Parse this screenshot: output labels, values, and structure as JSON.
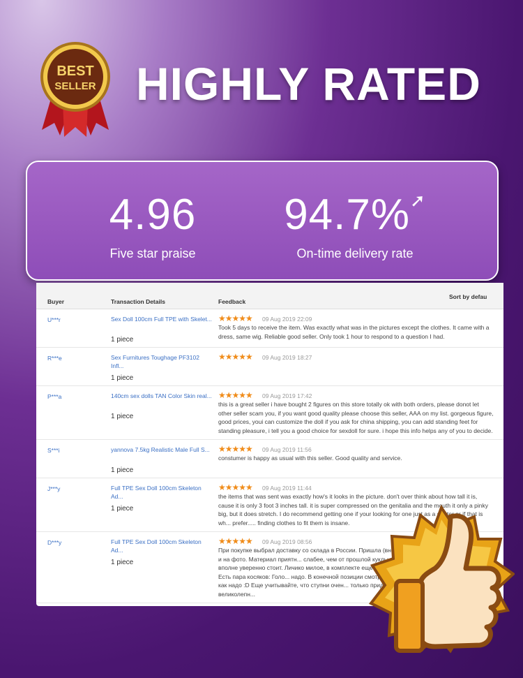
{
  "badge": {
    "line1": "BEST",
    "line2": "SELLER"
  },
  "headline": "HIGHLY RATED",
  "stats": [
    {
      "value": "4.96",
      "label": "Five star praise"
    },
    {
      "value": "94.7%",
      "label": "On-time delivery rate",
      "icon": "arrow-up-icon"
    }
  ],
  "table": {
    "headers": {
      "buyer": "Buyer",
      "transaction": "Transaction Details",
      "feedback": "Feedback",
      "sort": "Sort by defau"
    },
    "rows": [
      {
        "buyer": "U***r",
        "product": "Sex Doll 100cm Full TPE with Skelet...",
        "qty": "1 piece",
        "stars": "★★★★★",
        "date": "09 Aug 2019 22:09",
        "feedback": "Took 5 days to receive the item. Was exactly what was in the pictures except the clothes. It came with a dress, same wig. Reliable good seller. Only took 1 hour to respond to a question I had."
      },
      {
        "buyer": "R***e",
        "product": "Sex Furnitures Toughage PF3102 Infl...",
        "qty": "1 piece",
        "stars": "★★★★★",
        "date": "09 Aug 2019 18:27",
        "feedback": ""
      },
      {
        "buyer": "P***a",
        "product": "140cm sex dolls TAN Color Skin real...",
        "qty": "1 piece",
        "stars": "★★★★★",
        "date": "09 Aug 2019 17:42",
        "feedback": "this is a great seller i have bought 2 figures on this store totally ok with both orders, please donot let other seller scam you, if you want good quality please choose this seller, AAA on my list. gorgeous figure, good prices, youi can customize the doll if you ask for china shipping, you can add standing feet for standing pleasure, i tell you a good choice for sexdoll for sure. i hope this info helps any of you to decide."
      },
      {
        "buyer": "S***i",
        "product": "yannova 7.5kg Realistic Male Full S...",
        "qty": "1 piece",
        "stars": "★★★★★",
        "date": "09 Aug 2019 11:56",
        "feedback": "constumer is happy as usual with this seller. Good quality and service."
      },
      {
        "buyer": "J***y",
        "product": "Full TPE Sex Doll 100cm Skeleton Ad...",
        "qty": "1 piece",
        "stars": "★★★★★",
        "date": "09 Aug 2019 11:44",
        "feedback": "the items that was sent was exactly how's it looks in the picture. don't over think about how tall it is, cause it is only 3 foot 3 inches tall. it is super compressed on the genitalia and the mouth it only a pinky big, but it does stretch. I do recommend getting one if your looking for one just as a starter or if that is wh... prefer..... finding clothes to fit them is insane."
      },
      {
        "buyer": "D***y",
        "product": "Full TPE Sex Doll 100cm Skeleton Ad...",
        "qty": "1 piece",
        "stars": "★★★★★",
        "date": "09 Aug 2019 08:56",
        "feedback": "При покупке выбрал доставку со склада в России. Пришла (внеш... Сама кукла точно такая же, как и на фото. Материал приятн... слабее, чем от прошлой куклы, что приятно удивило. Конеч... вполне уверенно стоит. Личико милое, в комплекте еще был... молодцы). Все очень понравилось. Есть пара косяков: Голо... надо. В конечной позиции смотрела куда то в спину. Но, п... ее поставить как надо :D Еще учитывайте, что ступни очен... только придерживая. В остальном, за эти деньги великолепн..."
      }
    ]
  },
  "colors": {
    "accent": "#8e4db8",
    "link": "#3a6fc4",
    "star": "#f08c1a"
  }
}
